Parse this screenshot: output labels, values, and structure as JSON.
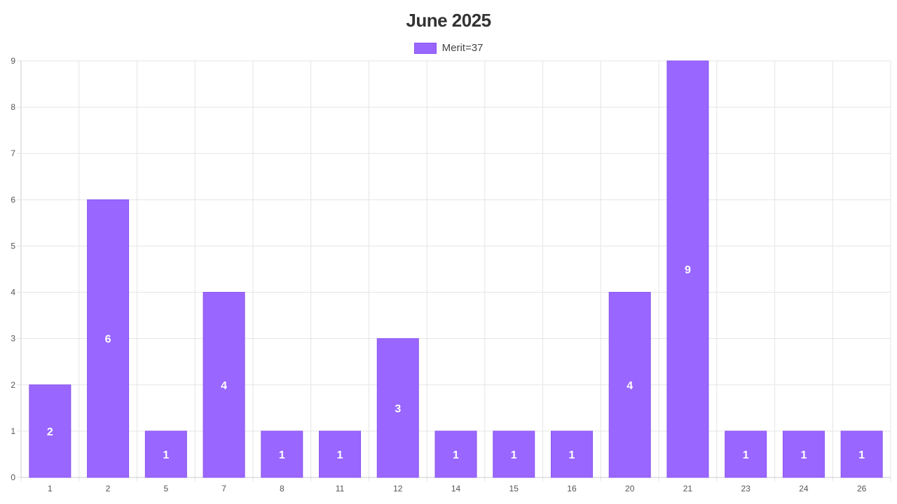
{
  "chart_data": {
    "type": "bar",
    "title": "June 2025",
    "xlabel": "",
    "ylabel": "",
    "categories": [
      "1",
      "2",
      "5",
      "7",
      "8",
      "11",
      "12",
      "14",
      "15",
      "16",
      "20",
      "21",
      "23",
      "24",
      "26"
    ],
    "series": [
      {
        "name": "Merit=37",
        "values": [
          2,
          6,
          1,
          4,
          1,
          1,
          3,
          1,
          1,
          1,
          4,
          9,
          1,
          1,
          1
        ]
      }
    ],
    "ylim": [
      0,
      9
    ],
    "yticks": [
      0,
      1,
      2,
      3,
      4,
      5,
      6,
      7,
      8,
      9
    ],
    "grid": true,
    "legend_position": "top-center",
    "data_labels": true,
    "colors": {
      "bar_fill": "#9966ff",
      "bar_border": "#8b55ee",
      "grid": "#e5e5e5",
      "axis": "#cccccc",
      "data_label": "#ffffff"
    }
  }
}
